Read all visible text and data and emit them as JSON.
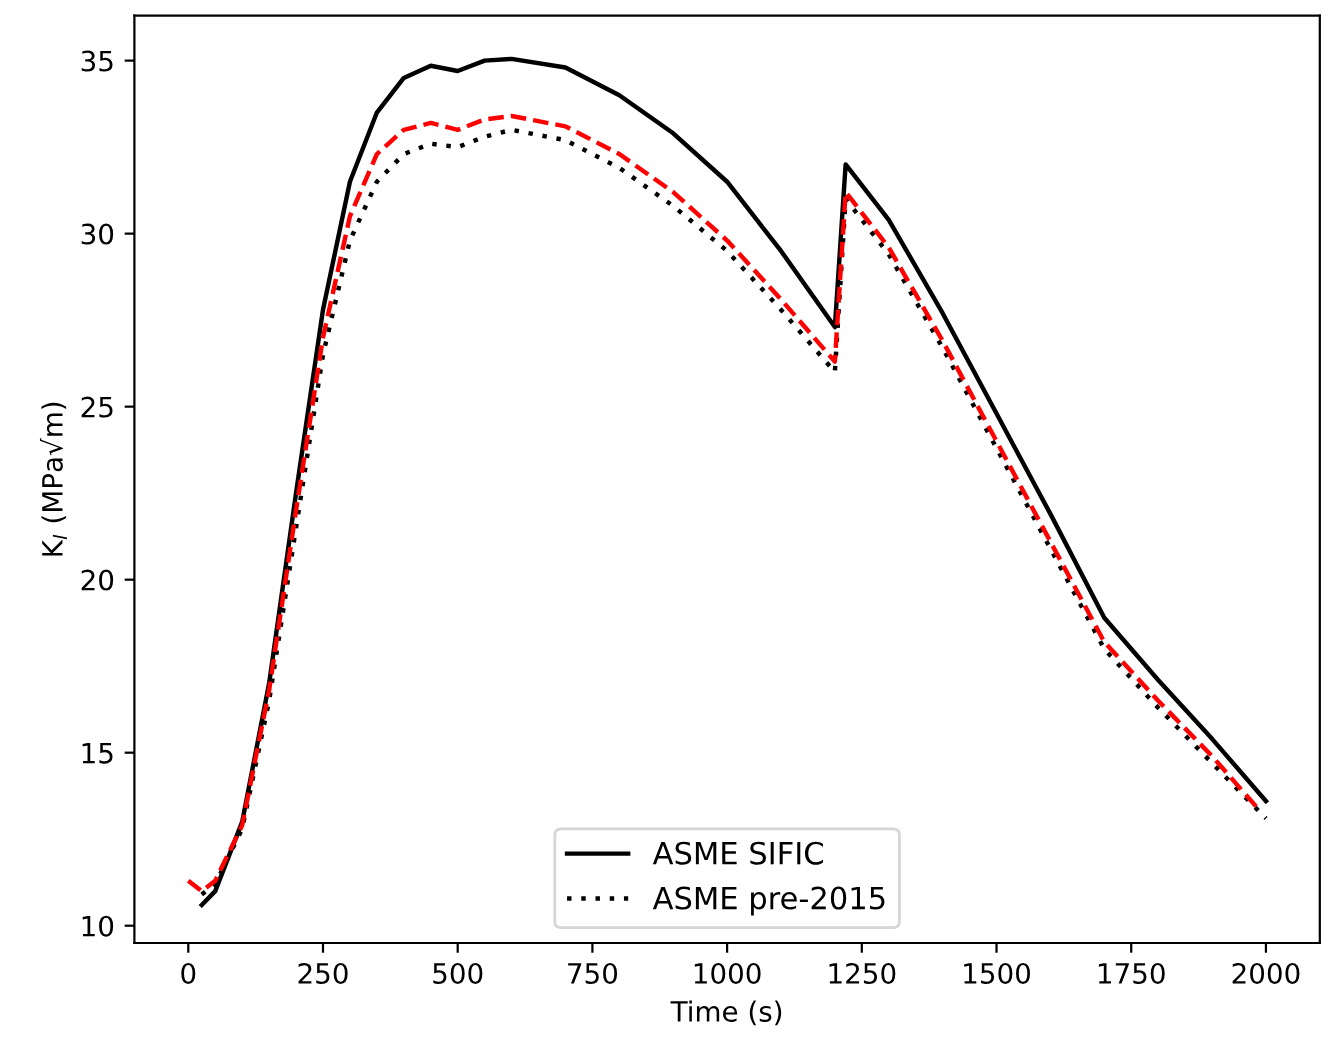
{
  "chart_data": {
    "type": "line",
    "xlabel": "Time (s)",
    "ylabel": "K$_{I}$ (MPa√m)",
    "xlim": [
      -100,
      2100
    ],
    "ylim": [
      9.5,
      36.3
    ],
    "xticks": [
      0,
      250,
      500,
      750,
      1000,
      1250,
      1500,
      1750,
      2000
    ],
    "yticks": [
      10,
      15,
      20,
      25,
      30,
      35
    ],
    "grid": false,
    "legend": "bottom",
    "marker": "none",
    "series": [
      {
        "name": "ASME SIFIC",
        "color": "#000000",
        "line_style": "solid",
        "x": [
          25,
          50,
          100,
          150,
          200,
          250,
          300,
          350,
          400,
          450,
          500,
          550,
          600,
          700,
          800,
          900,
          1000,
          1100,
          1200,
          1220,
          1300,
          1400,
          1500,
          1600,
          1700,
          1800,
          1900,
          2000
        ],
        "values": [
          10.6,
          11,
          13,
          17,
          22.5,
          27.8,
          31.5,
          33.5,
          34.5,
          34.85,
          34.7,
          35,
          35.05,
          34.8,
          34,
          32.9,
          31.5,
          29.5,
          27.3,
          32,
          30.4,
          27.7,
          24.8,
          21.9,
          18.9,
          17.1,
          15.4,
          13.6
        ]
      },
      {
        "name": "ASME pre-2015",
        "color": "#000000",
        "line_style": "dotted",
        "x": [
          25,
          50,
          100,
          150,
          200,
          250,
          300,
          350,
          400,
          450,
          500,
          550,
          600,
          700,
          800,
          900,
          1000,
          1100,
          1200,
          1220,
          1300,
          1400,
          1500,
          1600,
          1700,
          1800,
          1900,
          2000
        ],
        "values": [
          10.9,
          11.2,
          12.8,
          16.5,
          21.5,
          26.5,
          29.8,
          31.5,
          32.3,
          32.6,
          32.5,
          32.8,
          33,
          32.7,
          31.9,
          30.8,
          29.5,
          27.8,
          26,
          31,
          29.4,
          26.7,
          23.8,
          20.9,
          18,
          16.3,
          14.7,
          13.1
        ]
      },
      {
        "color": "#ff0000",
        "line_style": "dashed",
        "x": [
          0,
          25,
          50,
          100,
          150,
          200,
          250,
          300,
          350,
          400,
          450,
          500,
          550,
          600,
          700,
          800,
          900,
          1000,
          1100,
          1200,
          1220,
          1300,
          1400,
          1500,
          1600,
          1700,
          1800,
          1900,
          1990
        ],
        "values": [
          11.3,
          11,
          11.3,
          12.9,
          16.8,
          22,
          27,
          30.5,
          32.3,
          33,
          33.2,
          33,
          33.3,
          33.4,
          33.1,
          32.3,
          31.2,
          29.8,
          28.1,
          26.3,
          31.2,
          29.6,
          26.9,
          24,
          21.1,
          18.2,
          16.5,
          14.9,
          13.3
        ]
      }
    ]
  }
}
